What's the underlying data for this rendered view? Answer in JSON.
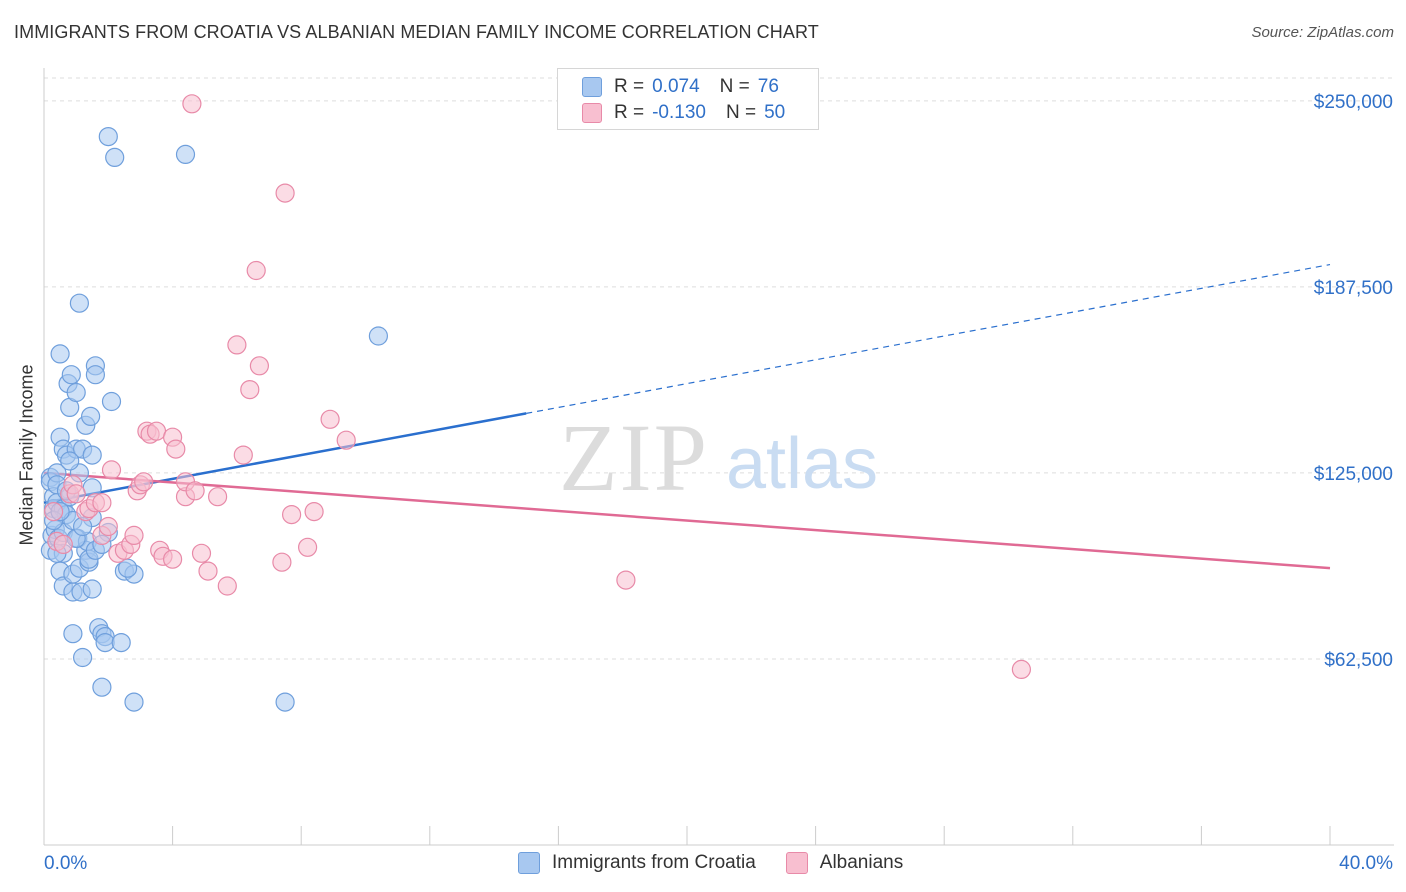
{
  "header": {
    "title": "IMMIGRANTS FROM CROATIA VS ALBANIAN MEDIAN FAMILY INCOME CORRELATION CHART",
    "source": "Source: ZipAtlas.com"
  },
  "watermark": {
    "zip": "ZIP",
    "atlas": "atlas"
  },
  "legend": {
    "rows": [
      {
        "r_label": "R =",
        "r_value": "0.074",
        "n_label": "N =",
        "n_value": "76",
        "color": "#a8c8f0",
        "border": "#6f9fdc"
      },
      {
        "r_label": "R =",
        "r_value": "-0.130",
        "n_label": "N =",
        "n_value": "50",
        "color": "#f8bfd0",
        "border": "#e88aa8"
      }
    ]
  },
  "chart_data": {
    "type": "scatter",
    "title": "IMMIGRANTS FROM CROATIA VS ALBANIAN MEDIAN FAMILY INCOME CORRELATION CHART",
    "xlabel": "",
    "ylabel": "Median Family Income",
    "xlim": [
      0,
      40
    ],
    "ylim": [
      0,
      257000
    ],
    "x_tick_labels": [
      "0.0%",
      "40.0%"
    ],
    "y_ticks": [
      62500,
      125000,
      187500,
      250000
    ],
    "y_tick_labels": [
      "$62,500",
      "$125,000",
      "$187,500",
      "$250,000"
    ],
    "grid": true,
    "series": [
      {
        "name": "Immigrants from Croatia",
        "color": "#a8c8f0",
        "stroke": "#6f9fdc",
        "line_color": "#2a6fce",
        "trend": {
          "x_start": 0,
          "y_start": 115000,
          "x_solid_end": 15,
          "y_solid_end": 145000,
          "x_end": 40,
          "y_end": 195000
        },
        "points": [
          [
            0.2,
            123500
          ],
          [
            0.2,
            122000
          ],
          [
            0.25,
            104000
          ],
          [
            0.2,
            99000
          ],
          [
            0.3,
            117000
          ],
          [
            0.3,
            113000
          ],
          [
            0.35,
            106000
          ],
          [
            0.4,
            125000
          ],
          [
            0.4,
            121000
          ],
          [
            0.4,
            115000
          ],
          [
            0.45,
            103000
          ],
          [
            0.5,
            137000
          ],
          [
            0.5,
            165000
          ],
          [
            0.5,
            92000
          ],
          [
            0.6,
            133000
          ],
          [
            0.6,
            98000
          ],
          [
            0.6,
            87000
          ],
          [
            0.6,
            113000
          ],
          [
            0.6,
            105000
          ],
          [
            0.7,
            131000
          ],
          [
            0.7,
            111000
          ],
          [
            0.75,
            155000
          ],
          [
            0.8,
            147000
          ],
          [
            0.8,
            117000
          ],
          [
            0.85,
            158000
          ],
          [
            0.9,
            109000
          ],
          [
            0.9,
            85000
          ],
          [
            0.9,
            91000
          ],
          [
            0.9,
            71000
          ],
          [
            1.0,
            152000
          ],
          [
            1.0,
            133000
          ],
          [
            1.05,
            103000
          ],
          [
            1.1,
            182000
          ],
          [
            1.1,
            125000
          ],
          [
            1.1,
            93000
          ],
          [
            1.15,
            85000
          ],
          [
            1.2,
            133000
          ],
          [
            1.2,
            63000
          ],
          [
            1.3,
            141000
          ],
          [
            1.3,
            99000
          ],
          [
            1.35,
            102000
          ],
          [
            1.4,
            95000
          ],
          [
            1.4,
            96000
          ],
          [
            1.45,
            144000
          ],
          [
            1.5,
            120000
          ],
          [
            1.5,
            110000
          ],
          [
            1.5,
            131000
          ],
          [
            1.5,
            86000
          ],
          [
            1.6,
            161000
          ],
          [
            1.6,
            158000
          ],
          [
            1.6,
            99000
          ],
          [
            1.7,
            73000
          ],
          [
            1.8,
            71000
          ],
          [
            1.8,
            53000
          ],
          [
            1.9,
            70000
          ],
          [
            1.9,
            68000
          ],
          [
            2.0,
            238000
          ],
          [
            2.0,
            105000
          ],
          [
            2.1,
            149000
          ],
          [
            2.2,
            231000
          ],
          [
            2.4,
            68000
          ],
          [
            2.5,
            92000
          ],
          [
            2.8,
            91000
          ],
          [
            2.8,
            48000
          ],
          [
            4.4,
            232000
          ],
          [
            7.5,
            48000
          ],
          [
            10.4,
            171000
          ],
          [
            0.3,
            109000
          ],
          [
            0.5,
            112000
          ],
          [
            1.0,
            103000
          ],
          [
            0.8,
            129000
          ],
          [
            1.2,
            107000
          ],
          [
            0.4,
            98000
          ],
          [
            0.7,
            119000
          ],
          [
            1.8,
            101000
          ],
          [
            2.6,
            93000
          ]
        ]
      },
      {
        "name": "Albanians",
        "color": "#f8bfd0",
        "stroke": "#e88aa8",
        "line_color": "#e06a94",
        "trend": {
          "x_start": 0,
          "y_start": 125000,
          "x_end": 40,
          "y_end": 93000
        },
        "points": [
          [
            0.3,
            112000
          ],
          [
            0.4,
            102000
          ],
          [
            0.6,
            101000
          ],
          [
            0.8,
            118000
          ],
          [
            0.9,
            121000
          ],
          [
            1.0,
            118000
          ],
          [
            1.3,
            112000
          ],
          [
            1.4,
            113000
          ],
          [
            1.6,
            115000
          ],
          [
            1.8,
            115000
          ],
          [
            1.8,
            104000
          ],
          [
            2.0,
            107000
          ],
          [
            2.1,
            126000
          ],
          [
            2.3,
            98000
          ],
          [
            2.5,
            99000
          ],
          [
            2.7,
            101000
          ],
          [
            2.8,
            104000
          ],
          [
            2.9,
            119000
          ],
          [
            3.0,
            121000
          ],
          [
            3.1,
            122000
          ],
          [
            3.2,
            139000
          ],
          [
            3.3,
            138000
          ],
          [
            3.5,
            139000
          ],
          [
            3.6,
            99000
          ],
          [
            3.7,
            97000
          ],
          [
            4.0,
            96000
          ],
          [
            4.0,
            137000
          ],
          [
            4.1,
            133000
          ],
          [
            4.4,
            117000
          ],
          [
            4.4,
            122000
          ],
          [
            4.7,
            119000
          ],
          [
            4.6,
            249000
          ],
          [
            4.9,
            98000
          ],
          [
            5.1,
            92000
          ],
          [
            5.4,
            117000
          ],
          [
            5.7,
            87000
          ],
          [
            6.0,
            168000
          ],
          [
            6.2,
            131000
          ],
          [
            6.4,
            153000
          ],
          [
            6.6,
            193000
          ],
          [
            6.7,
            161000
          ],
          [
            7.4,
            95000
          ],
          [
            7.5,
            219000
          ],
          [
            7.7,
            111000
          ],
          [
            8.2,
            100000
          ],
          [
            8.4,
            112000
          ],
          [
            8.9,
            143000
          ],
          [
            9.4,
            136000
          ],
          [
            18.1,
            89000
          ],
          [
            30.4,
            59000
          ]
        ]
      }
    ]
  },
  "bottom_legend": {
    "items": [
      {
        "label": "Immigrants from Croatia",
        "color": "#a8c8f0",
        "border": "#6f9fdc"
      },
      {
        "label": "Albanians",
        "color": "#f8bfd0",
        "border": "#e88aa8"
      }
    ]
  }
}
